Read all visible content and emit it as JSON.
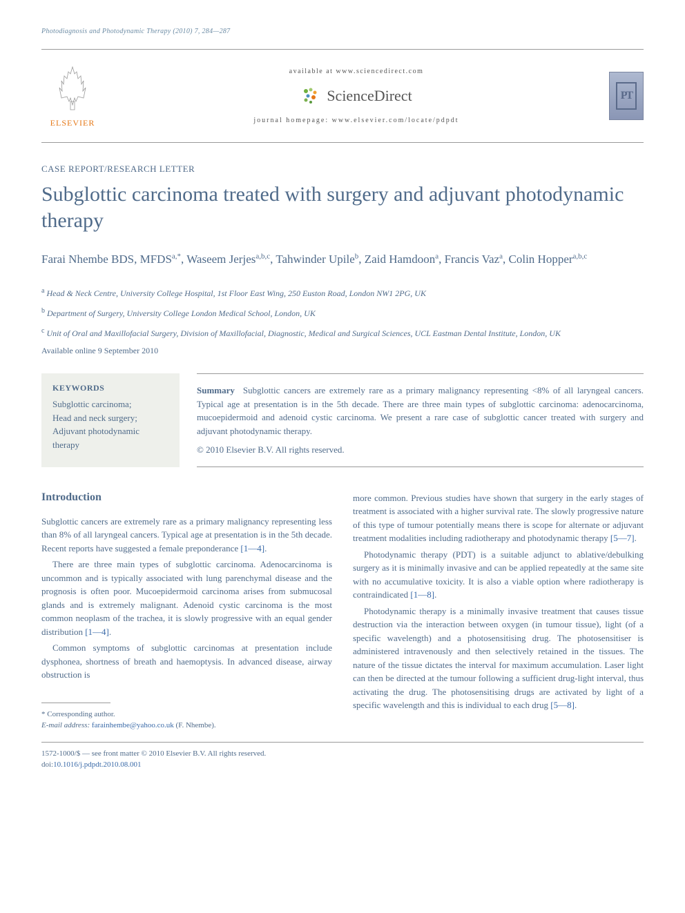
{
  "running_head": "Photodiagnosis and Photodynamic Therapy (2010) 7, 284—287",
  "masthead": {
    "elsevier": "ELSEVIER",
    "available_at": "available at www.sciencedirect.com",
    "sciencedirect": "ScienceDirect",
    "journal_home": "journal homepage: www.elsevier.com/locate/pdpdt",
    "cover_initials": "PT"
  },
  "article": {
    "type": "CASE REPORT/RESEARCH LETTER",
    "title": "Subglottic carcinoma treated with surgery and adjuvant photodynamic therapy",
    "authors_html": "Farai Nhembe BDS, MFDS<sup>a,*</sup>, Waseem Jerjes<sup>a,b,c</sup>, Tahwinder Upile<sup>b</sup>, Zaid Hamdoon<sup>a</sup>, Francis Vaz<sup>a</sup>, Colin Hopper<sup>a,b,c</sup>",
    "affiliations": [
      "<sup>a</sup> Head & Neck Centre, University College Hospital, 1st Floor East Wing, 250 Euston Road, London NW1 2PG, UK",
      "<sup>b</sup> Department of Surgery, University College London Medical School, London, UK",
      "<sup>c</sup> Unit of Oral and Maxillofacial Surgery, Division of Maxillofacial, Diagnostic, Medical and Surgical Sciences, UCL Eastman Dental Institute, London, UK"
    ],
    "available_online": "Available online 9 September 2010"
  },
  "keywords": {
    "head": "KEYWORDS",
    "list": "Subglottic carcinoma;\nHead and neck surgery;\nAdjuvant photodynamic therapy"
  },
  "summary": {
    "head": "Summary",
    "text": "Subglottic cancers are extremely rare as a primary malignancy representing <8% of all laryngeal cancers. Typical age at presentation is in the 5th decade. There are three main types of subglottic carcinoma: adenocarcinoma, mucoepidermoid and adenoid cystic carcinoma. We present a rare case of subglottic cancer treated with surgery and adjuvant photodynamic therapy.",
    "copyright": "© 2010 Elsevier B.V. All rights reserved."
  },
  "sections": {
    "intro_head": "Introduction",
    "col1": [
      "Subglottic cancers are extremely rare as a primary malignancy representing less than 8% of all laryngeal cancers. Typical age at presentation is in the 5th decade. Recent reports have suggested a female preponderance <span class='ref-link'>[1—4]</span>.",
      "There are three main types of subglottic carcinoma. Adenocarcinoma is uncommon and is typically associated with lung parenchymal disease and the prognosis is often poor. Mucoepidermoid carcinoma arises from submucosal glands and is extremely malignant. Adenoid cystic carcinoma is the most common neoplasm of the trachea, it is slowly progressive with an equal gender distribution <span class='ref-link'>[1—4]</span>.",
      "Common symptoms of subglottic carcinomas at presentation include dysphonea, shortness of breath and haemoptysis. In advanced disease, airway obstruction is"
    ],
    "col2": [
      "more common. Previous studies have shown that surgery in the early stages of treatment is associated with a higher survival rate. The slowly progressive nature of this type of tumour potentially means there is scope for alternate or adjuvant treatment modalities including radiotherapy and photodynamic therapy <span class='ref-link'>[5—7]</span>.",
      "Photodynamic therapy (PDT) is a suitable adjunct to ablative/debulking surgery as it is minimally invasive and can be applied repeatedly at the same site with no accumulative toxicity. It is also a viable option where radiotherapy is contraindicated <span class='ref-link'>[1—8]</span>.",
      "Photodynamic therapy is a minimally invasive treatment that causes tissue destruction via the interaction between oxygen (in tumour tissue), light (of a specific wavelength) and a photosensitising drug. The photosensitiser is administered intravenously and then selectively retained in the tissues. The nature of the tissue dictates the interval for maximum accumulation. Laser light can then be directed at the tumour following a sufficient drug-light interval, thus activating the drug. The photosensitising drugs are activated by light of a specific wavelength and this is individual to each drug <span class='ref-link'>[5—8]</span>."
    ]
  },
  "footnote": {
    "corr": "* Corresponding author.",
    "email_label": "E-mail address:",
    "email": "farainhembe@yahoo.co.uk",
    "email_name": "(F. Nhembe)."
  },
  "footer": {
    "issn_line": "1572-1000/$ — see front matter © 2010 Elsevier B.V. All rights reserved.",
    "doi_label": "doi:",
    "doi": "10.1016/j.pdpdt.2010.08.001"
  },
  "colors": {
    "accent": "#506b8a",
    "link": "#3a6aa8",
    "orange": "#e67817",
    "kw_bg": "#eef0eb"
  }
}
